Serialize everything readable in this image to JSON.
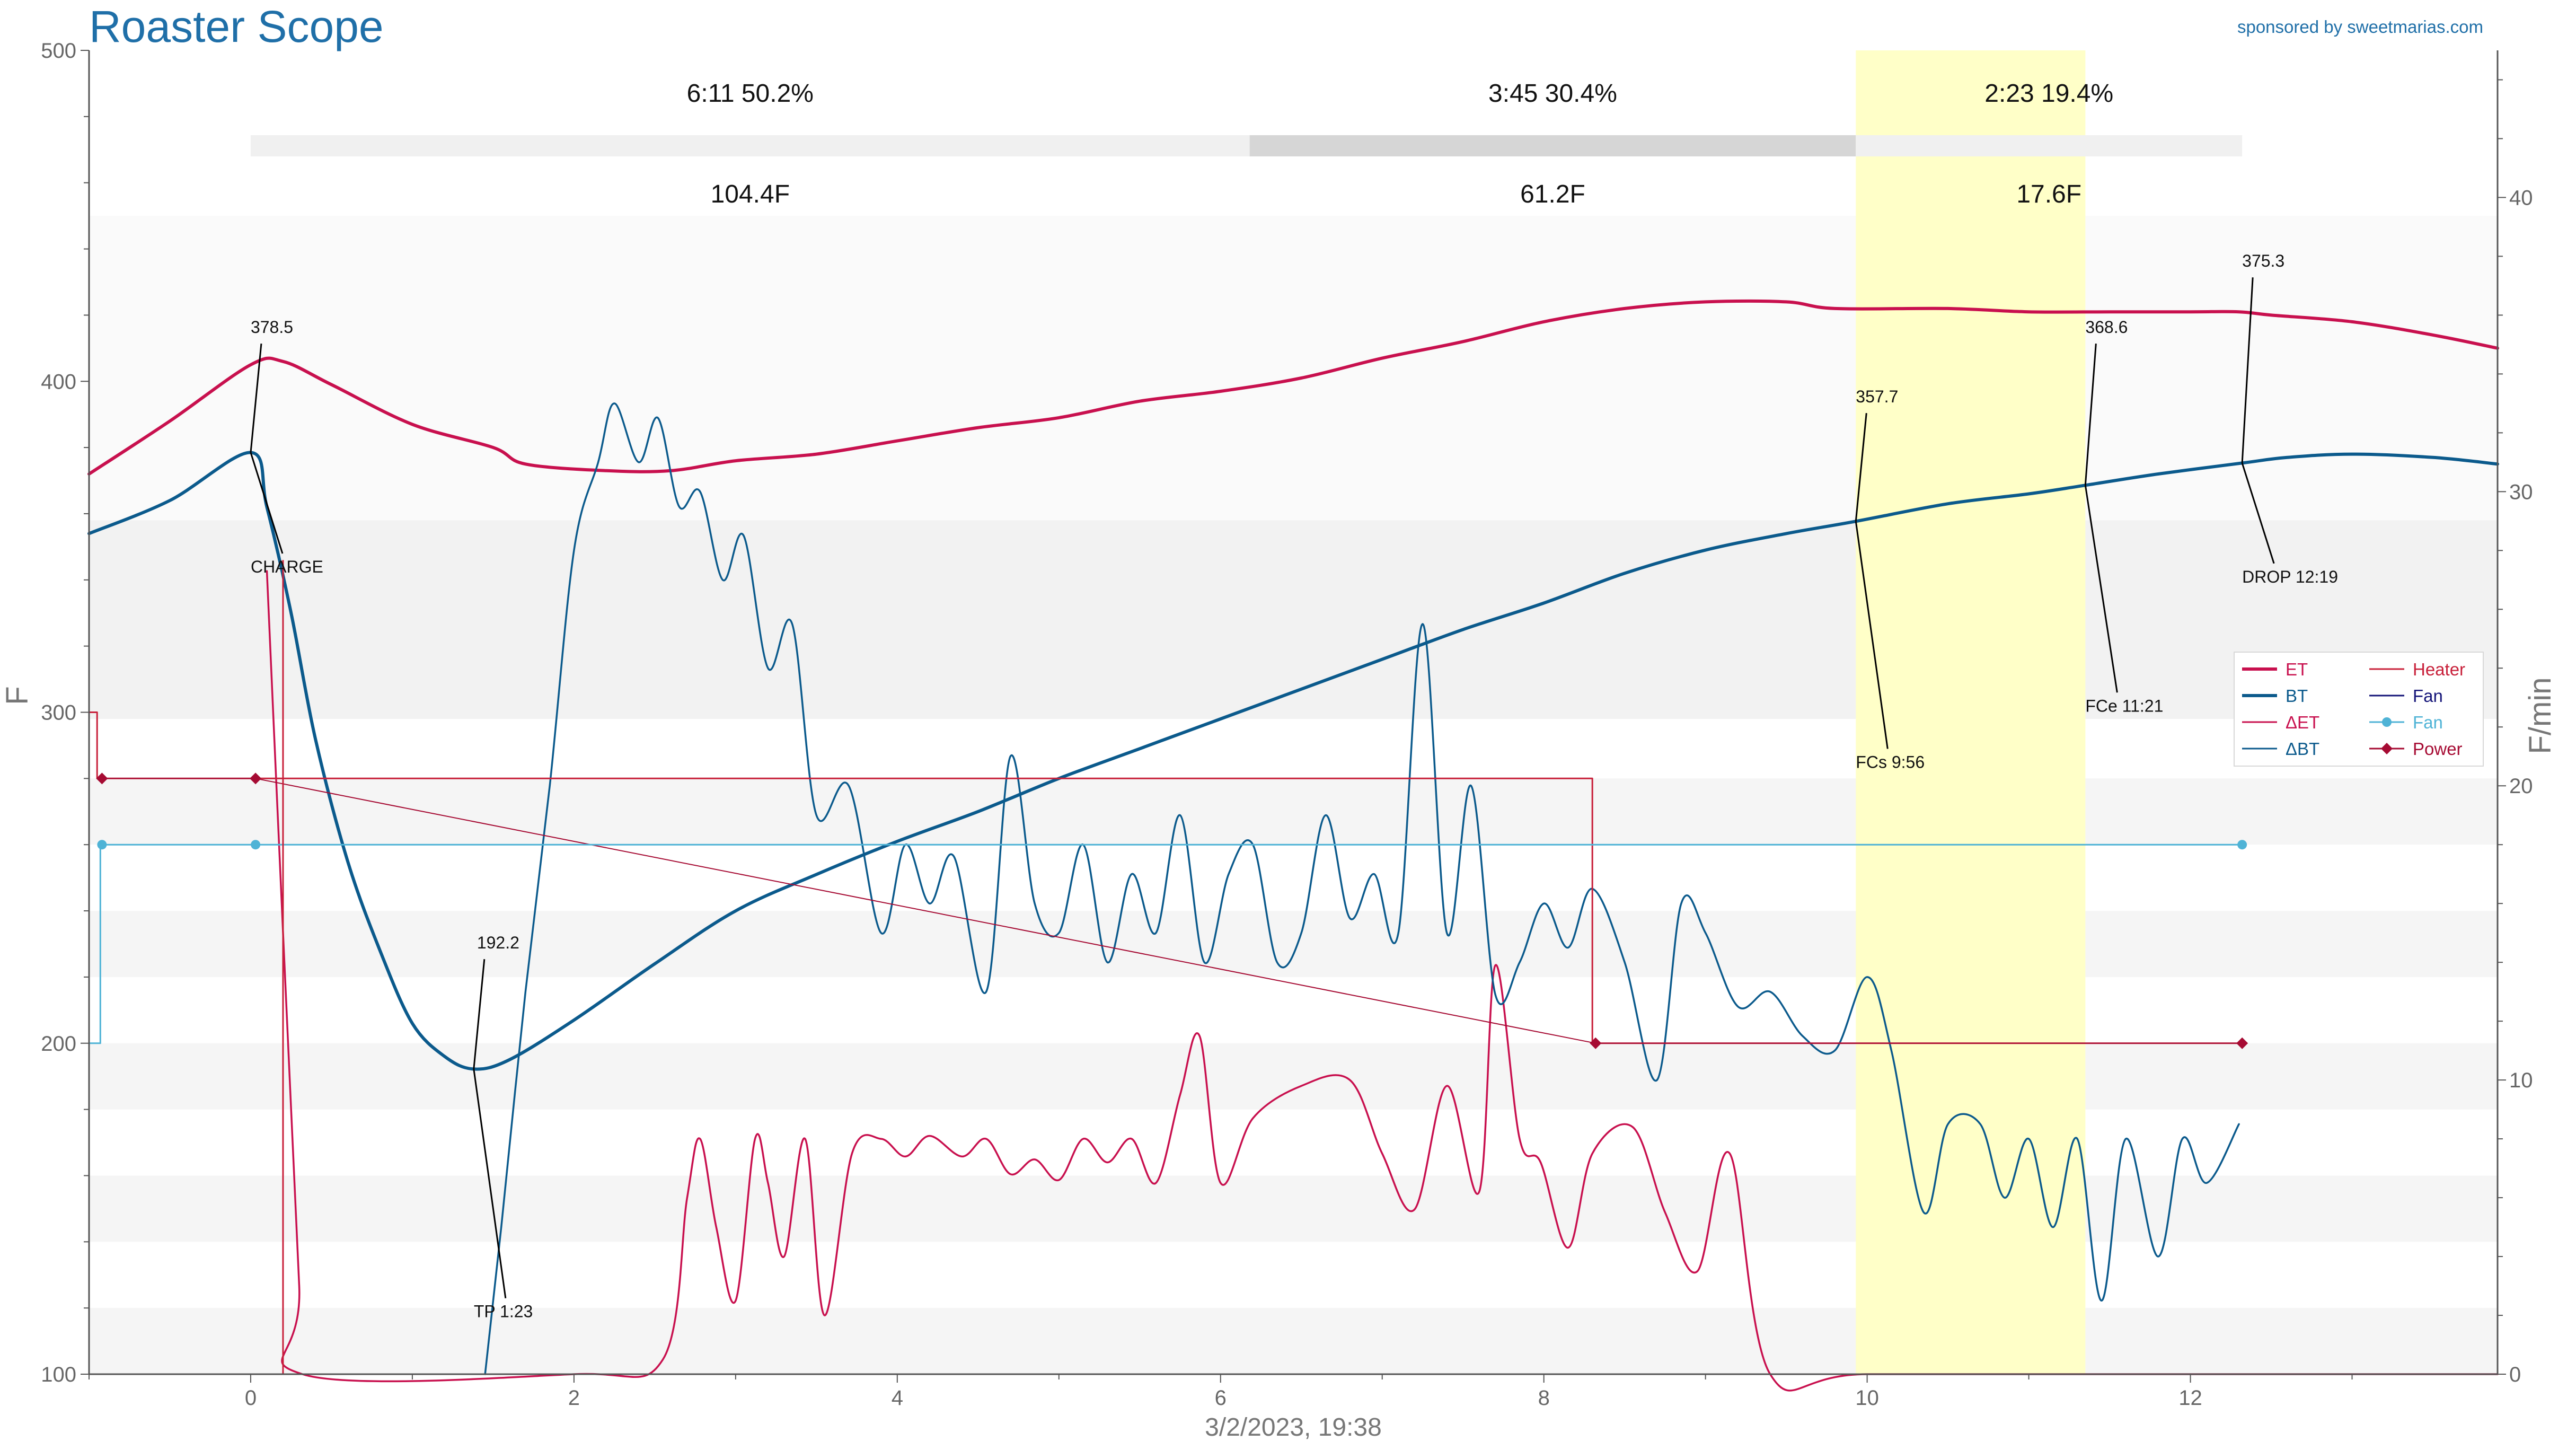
{
  "app": {
    "title": "Roaster Scope",
    "sponsor": "sponsored by sweetmarias.com",
    "title_color": "#1f6fa8",
    "sponsor_color": "#1f6fa8"
  },
  "chart_data": {
    "type": "line",
    "xlabel": "3/2/2023, 19:38",
    "ylabel": "F",
    "ylabel_right": "F/min",
    "xlim": [
      -1,
      13.9
    ],
    "ylim": [
      100,
      500
    ],
    "ylim_right": [
      0,
      45
    ],
    "x_ticks": [
      0,
      2,
      4,
      6,
      8,
      10,
      12
    ],
    "y_ticks": [
      100,
      200,
      300,
      400,
      500
    ],
    "y_ticks_right": [
      0,
      10,
      20,
      30,
      40
    ],
    "grid": false,
    "legend_position": "right",
    "colors": {
      "ET": "#c8104e",
      "BT": "#0b5a8c",
      "dET": "#c8104e",
      "dBT": "#0b5a8c",
      "Heater": "#c8203a",
      "Fan": "#141478",
      "FanLine": "#4fb3d6",
      "Power": "#a60b33",
      "phase_bar_light": "#f0f0f0",
      "phase_bar_dark": "#d6d6d6",
      "highlight": "#ffffc8"
    },
    "phases": [
      {
        "x0": 0,
        "x1": 6.18,
        "time_pct": "6:11  50.2%",
        "delta": "104.4F",
        "shade": "light"
      },
      {
        "x0": 6.18,
        "x1": 9.93,
        "time_pct": "3:45  30.4%",
        "delta": "61.2F",
        "shade": "dark"
      },
      {
        "x0": 9.93,
        "x1": 12.32,
        "time_pct": "2:23  19.4%",
        "delta": "17.6F",
        "shade": "light"
      }
    ],
    "highlight_range": [
      9.93,
      11.35
    ],
    "events": [
      {
        "x": 0,
        "y": 378.5,
        "value": "378.5",
        "label": "CHARGE",
        "vx": 0.0,
        "vy": 413,
        "lx": 0.0,
        "ly": 347
      },
      {
        "x": 1.38,
        "y": 192.2,
        "value": "192.2",
        "label": "TP 1:23",
        "vx": 1.38,
        "vy": 227,
        "lx": 1.38,
        "ly": 122
      },
      {
        "x": 9.93,
        "y": 357.7,
        "value": "357.7",
        "label": "FCs 9:56",
        "vx": 9.93,
        "vy": 392,
        "lx": 9.93,
        "ly": 288
      },
      {
        "x": 11.35,
        "y": 368.6,
        "value": "368.6",
        "label": "FCe 11:21",
        "vx": 11.35,
        "vy": 413,
        "lx": 11.35,
        "ly": 305
      },
      {
        "x": 12.32,
        "y": 375.3,
        "value": "375.3",
        "label": "DROP 12:19",
        "vx": 12.32,
        "vy": 433,
        "lx": 12.32,
        "ly": 344
      }
    ],
    "legend": [
      {
        "label": "ET",
        "color": "#c8104e",
        "marker": "none",
        "bold": true
      },
      {
        "label": "Heater",
        "color": "#c8203a",
        "marker": "none",
        "bold": false
      },
      {
        "label": "BT",
        "color": "#0b5a8c",
        "marker": "none",
        "bold": true
      },
      {
        "label": "Fan",
        "color": "#141478",
        "marker": "none",
        "bold": false
      },
      {
        "label": "ΔET",
        "color": "#c8104e",
        "marker": "none",
        "bold": false
      },
      {
        "label": "Fan",
        "color": "#4fb3d6",
        "marker": "circle",
        "bold": false
      },
      {
        "label": "ΔBT",
        "color": "#0b5a8c",
        "marker": "none",
        "bold": false
      },
      {
        "label": "Power",
        "color": "#a60b33",
        "marker": "diamond",
        "bold": false
      }
    ],
    "series": [
      {
        "name": "ET",
        "axis": "left",
        "step": false,
        "x": [
          -1,
          -0.5,
          0,
          0.2,
          0.5,
          1.0,
          1.5,
          1.7,
          2.2,
          2.6,
          3.0,
          3.5,
          4.0,
          4.5,
          5.0,
          5.5,
          6.0,
          6.5,
          7.0,
          7.5,
          8.0,
          8.5,
          9.0,
          9.5,
          9.8,
          10.5,
          11.0,
          11.5,
          12.0,
          12.3,
          12.5,
          13.0,
          13.5,
          13.9
        ],
        "y": [
          372,
          388,
          405,
          406,
          399,
          387,
          380,
          375,
          373,
          373,
          376,
          378,
          382,
          386,
          389,
          394,
          397,
          401,
          407,
          412,
          418,
          422,
          424,
          424,
          422,
          422,
          421,
          421,
          421,
          421,
          420,
          418,
          414,
          410
        ]
      },
      {
        "name": "BT",
        "axis": "left",
        "step": false,
        "x": [
          -1,
          -0.5,
          0,
          0.1,
          0.25,
          0.4,
          0.6,
          0.8,
          1.0,
          1.2,
          1.38,
          1.6,
          2.0,
          2.5,
          3.0,
          3.5,
          4.0,
          4.5,
          5.0,
          5.5,
          6.0,
          6.5,
          7.0,
          7.5,
          8.0,
          8.5,
          9.0,
          9.5,
          9.93,
          10.5,
          11.0,
          11.35,
          11.8,
          12.32,
          12.6,
          13.0,
          13.5,
          13.9
        ],
        "y": [
          354,
          364,
          378.5,
          362,
          330,
          292,
          255,
          228,
          206,
          196,
          192.2,
          195,
          207,
          224,
          240,
          251,
          261,
          270,
          280,
          289,
          298,
          307,
          316,
          325,
          333,
          342,
          349,
          354,
          357.7,
          363,
          366,
          368.6,
          372,
          375.3,
          377,
          378,
          377,
          375
        ]
      },
      {
        "name": "ΔET",
        "axis": "right",
        "step": false,
        "x": [
          0.1,
          0.2,
          0.3,
          0.32,
          2.0,
          2.55,
          2.7,
          2.78,
          2.88,
          3.0,
          3.12,
          3.2,
          3.3,
          3.43,
          3.55,
          3.72,
          3.9,
          4.05,
          4.2,
          4.4,
          4.55,
          4.7,
          4.85,
          5.0,
          5.15,
          5.3,
          5.45,
          5.6,
          5.75,
          5.87,
          6.0,
          6.2,
          6.5,
          6.8,
          7.0,
          7.2,
          7.4,
          7.6,
          7.7,
          7.85,
          7.98,
          8.15,
          8.3,
          8.55,
          8.75,
          8.95,
          9.15,
          9.4,
          10.0,
          12.0,
          12.3,
          13.9
        ],
        "y": [
          27.3,
          15,
          3,
          0,
          0,
          0.5,
          6,
          8,
          5,
          2.5,
          8,
          6.5,
          4,
          8,
          2,
          7.5,
          8,
          7.4,
          8.1,
          7.4,
          8,
          6.8,
          7.3,
          6.6,
          8,
          7.2,
          8,
          6.5,
          9.5,
          11.5,
          6.5,
          8.7,
          9.8,
          10,
          7.5,
          5.6,
          9.8,
          6.2,
          13.9,
          8,
          7.2,
          4.3,
          7.5,
          8.4,
          5.5,
          3.5,
          7.5,
          0,
          0,
          0,
          0,
          0
        ]
      },
      {
        "name": "ΔBT",
        "axis": "right",
        "step": false,
        "x": [
          1.45,
          1.55,
          1.7,
          1.85,
          2.0,
          2.15,
          2.25,
          2.4,
          2.52,
          2.65,
          2.78,
          2.92,
          3.05,
          3.2,
          3.35,
          3.5,
          3.7,
          3.9,
          4.05,
          4.2,
          4.35,
          4.55,
          4.7,
          4.85,
          5.0,
          5.15,
          5.3,
          5.45,
          5.6,
          5.75,
          5.9,
          6.05,
          6.2,
          6.35,
          6.5,
          6.65,
          6.8,
          6.95,
          7.1,
          7.25,
          7.4,
          7.55,
          7.7,
          7.85,
          8.0,
          8.15,
          8.3,
          8.5,
          8.7,
          8.85,
          9.0,
          9.2,
          9.4,
          9.6,
          9.8,
          10.0,
          10.15,
          10.35,
          10.5,
          10.7,
          10.85,
          11.0,
          11.15,
          11.3,
          11.45,
          11.6,
          11.8,
          11.95,
          12.1,
          12.3
        ],
        "y": [
          0,
          5,
          13,
          20,
          28,
          31,
          33,
          31,
          32.5,
          29.5,
          30,
          27,
          28.5,
          24,
          25.5,
          19,
          20,
          15,
          18,
          16,
          17.6,
          13,
          21,
          16,
          15,
          18,
          14,
          17,
          15,
          19,
          14,
          17,
          18,
          14,
          15,
          19,
          15.5,
          17,
          15,
          25.5,
          15,
          20,
          12.9,
          14,
          16,
          14.5,
          16.5,
          14,
          10,
          16,
          15,
          12.5,
          13,
          11.5,
          11,
          13.5,
          11,
          5.5,
          8.5,
          8.5,
          6,
          8,
          5,
          8,
          2.5,
          8,
          4,
          8,
          6.5,
          8.5
        ]
      },
      {
        "name": "Heater",
        "axis": "left",
        "step": true,
        "x": [
          -1,
          -0.95,
          -0.95,
          0.0,
          0.2,
          0.2,
          8.3,
          8.3,
          12.32
        ],
        "y": [
          300,
          300,
          280,
          280,
          280,
          280,
          280,
          200,
          200
        ]
      },
      {
        "name": "Power",
        "axis": "left",
        "step": true,
        "x": [
          -0.95,
          0.03,
          8.32,
          12.32
        ],
        "y": [
          280,
          280,
          200,
          200
        ]
      },
      {
        "name": "Fan",
        "axis": "left",
        "step": true,
        "x": [
          -1,
          -0.93,
          -0.93,
          12.32
        ],
        "y": [
          200,
          200,
          260,
          260
        ]
      }
    ],
    "power_markers": {
      "x": [
        -0.92,
        0.03,
        8.32,
        12.32
      ],
      "y": [
        280,
        280,
        200,
        200
      ]
    },
    "fan_markers": {
      "x": [
        -0.92,
        0.03,
        12.32
      ],
      "y": [
        260,
        260,
        260
      ]
    },
    "et_heater_drop_x": 0.2
  }
}
